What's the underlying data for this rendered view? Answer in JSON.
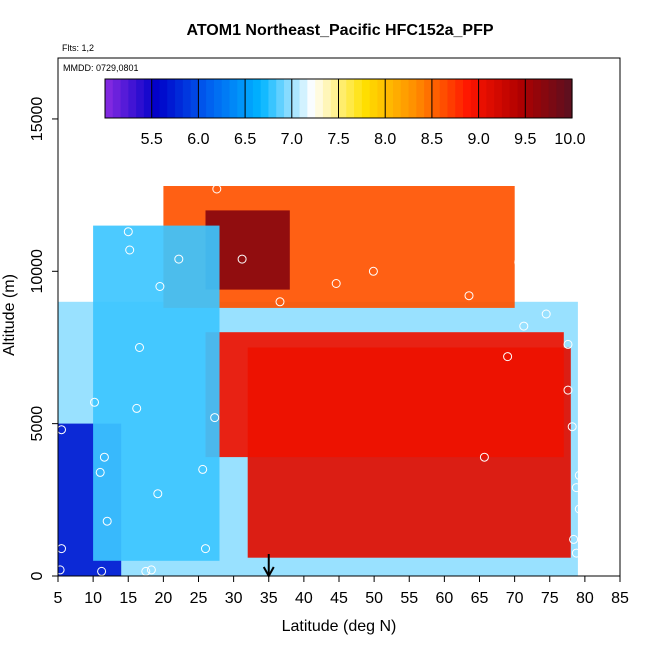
{
  "chart_data": {
    "type": "heatmap",
    "title": "ATOM1 Northeast_Pacific HFC152a_PFP",
    "notes": [
      "Flts: 1,2",
      "MMDD: 0729,0801"
    ],
    "xlabel": "Latitude (deg N)",
    "ylabel": "Altitude (m)",
    "xlim": [
      5,
      85
    ],
    "ylim": [
      0,
      17000
    ],
    "xticks": [
      5,
      10,
      15,
      20,
      25,
      30,
      35,
      40,
      45,
      50,
      55,
      60,
      65,
      70,
      75,
      80,
      85
    ],
    "yticks": [
      0,
      5000,
      10000,
      15000
    ],
    "colorbar": {
      "min": 5.0,
      "max": 10.0,
      "tick_values": [
        5.5,
        6.0,
        6.5,
        7.0,
        7.5,
        8.0,
        8.5,
        9.0,
        9.5,
        10.0
      ],
      "tick_labels": [
        "5.5",
        "6.0",
        "6.5",
        "7.0",
        "7.5",
        "8.0",
        "8.5",
        "9.0",
        "9.5",
        "10.0"
      ],
      "colors": [
        "#8a2be2",
        "#0000c8",
        "#0060f0",
        "#00b4ff",
        "#ffffff",
        "#ffe000",
        "#ff8c00",
        "#ff1500",
        "#b00000",
        "#5a1020"
      ]
    },
    "arrow_marker": {
      "x": 35
    },
    "field_layers": [
      {
        "name": "background",
        "x": [
          5,
          79
        ],
        "y": [
          0,
          9000
        ],
        "value": 7.0
      },
      {
        "name": "northern-band",
        "x": [
          32,
          78
        ],
        "y": [
          600,
          7500
        ],
        "value": 9.1
      },
      {
        "name": "mid-band",
        "x": [
          26,
          77
        ],
        "y": [
          3900,
          8000
        ],
        "value": 9.0
      },
      {
        "name": "upper-band",
        "x": [
          20,
          70
        ],
        "y": [
          8800,
          12800
        ],
        "value": 8.6
      },
      {
        "name": "hotspot",
        "x": [
          26,
          38
        ],
        "y": [
          9400,
          12000
        ],
        "value": 9.7
      },
      {
        "name": "tropical-low",
        "x": [
          5,
          14
        ],
        "y": [
          0,
          5000
        ],
        "value": 5.7
      },
      {
        "name": "midlat-low",
        "x": [
          10,
          28
        ],
        "y": [
          500,
          11500
        ],
        "value": 6.8
      }
    ],
    "sample_points": [
      {
        "x": 5.5,
        "y": 4800
      },
      {
        "x": 5.5,
        "y": 900
      },
      {
        "x": 5.3,
        "y": 200
      },
      {
        "x": 8.5,
        "y": 11300
      },
      {
        "x": 10.2,
        "y": 5700
      },
      {
        "x": 11.0,
        "y": 3400
      },
      {
        "x": 11.6,
        "y": 3900
      },
      {
        "x": 12.0,
        "y": 1800
      },
      {
        "x": 11.2,
        "y": 150
      },
      {
        "x": 15.0,
        "y": 11300
      },
      {
        "x": 15.2,
        "y": 10700
      },
      {
        "x": 16.2,
        "y": 5500
      },
      {
        "x": 16.6,
        "y": 7500
      },
      {
        "x": 17.5,
        "y": 150
      },
      {
        "x": 18.3,
        "y": 200
      },
      {
        "x": 19.2,
        "y": 2700
      },
      {
        "x": 19.5,
        "y": 9500
      },
      {
        "x": 22.2,
        "y": 10400
      },
      {
        "x": 25.6,
        "y": 3500
      },
      {
        "x": 26.0,
        "y": 900
      },
      {
        "x": 27.3,
        "y": 5200
      },
      {
        "x": 27.6,
        "y": 12700
      },
      {
        "x": 31.2,
        "y": 10400
      },
      {
        "x": 36.6,
        "y": 9000
      },
      {
        "x": 44.6,
        "y": 9600
      },
      {
        "x": 49.9,
        "y": 10000
      },
      {
        "x": 63.5,
        "y": 9200
      },
      {
        "x": 65.7,
        "y": 3900
      },
      {
        "x": 69.0,
        "y": 7200
      },
      {
        "x": 70.6,
        "y": 10300
      },
      {
        "x": 71.3,
        "y": 8200
      },
      {
        "x": 72.9,
        "y": 9900
      },
      {
        "x": 74.5,
        "y": 8600
      },
      {
        "x": 75.8,
        "y": 9400
      },
      {
        "x": 77.3,
        "y": 9700
      },
      {
        "x": 77.6,
        "y": 7600
      },
      {
        "x": 77.6,
        "y": 6100
      },
      {
        "x": 78.2,
        "y": 4900
      },
      {
        "x": 78.4,
        "y": 1200
      },
      {
        "x": 78.8,
        "y": 750
      },
      {
        "x": 78.8,
        "y": 2900
      },
      {
        "x": 79.2,
        "y": 3300
      },
      {
        "x": 79.2,
        "y": 2200
      }
    ]
  }
}
